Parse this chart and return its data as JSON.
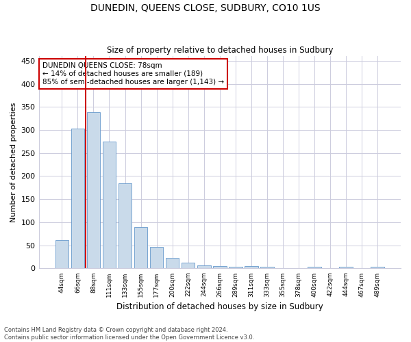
{
  "title": "DUNEDIN, QUEENS CLOSE, SUDBURY, CO10 1US",
  "subtitle": "Size of property relative to detached houses in Sudbury",
  "xlabel": "Distribution of detached houses by size in Sudbury",
  "ylabel": "Number of detached properties",
  "categories": [
    "44sqm",
    "66sqm",
    "88sqm",
    "111sqm",
    "133sqm",
    "155sqm",
    "177sqm",
    "200sqm",
    "222sqm",
    "244sqm",
    "266sqm",
    "289sqm",
    "311sqm",
    "333sqm",
    "355sqm",
    "378sqm",
    "400sqm",
    "422sqm",
    "444sqm",
    "467sqm",
    "489sqm"
  ],
  "values": [
    62,
    303,
    338,
    275,
    185,
    90,
    46,
    23,
    13,
    7,
    5,
    4,
    5,
    4,
    0,
    0,
    3,
    0,
    3,
    0,
    3
  ],
  "bar_color": "#c9daea",
  "bar_edge_color": "#6699cc",
  "vline_x": 1.5,
  "vline_color": "#cc0000",
  "annotation_title": "DUNEDIN QUEENS CLOSE: 78sqm",
  "annotation_line1": "← 14% of detached houses are smaller (189)",
  "annotation_line2": "85% of semi-detached houses are larger (1,143) →",
  "annotation_box_color": "#ffffff",
  "annotation_box_edge": "#cc0000",
  "ylim": [
    0,
    460
  ],
  "yticks": [
    0,
    50,
    100,
    150,
    200,
    250,
    300,
    350,
    400,
    450
  ],
  "footer1": "Contains HM Land Registry data © Crown copyright and database right 2024.",
  "footer2": "Contains public sector information licensed under the Open Government Licence v3.0.",
  "bg_color": "#ffffff",
  "plot_bg_color": "#ffffff",
  "grid_color": "#ccccdd"
}
